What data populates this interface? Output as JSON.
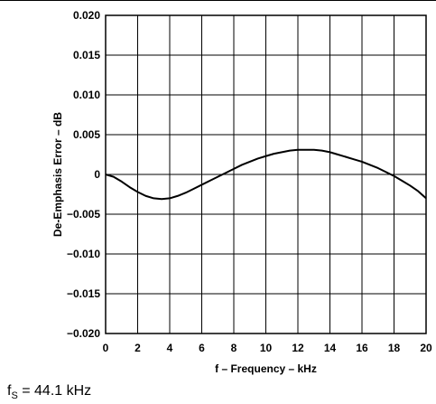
{
  "chart_data": {
    "type": "line",
    "xlabel": "f – Frequency – kHz",
    "ylabel": "De-Emphasis Error – dB",
    "xlim": [
      0,
      20
    ],
    "ylim": [
      -0.02,
      0.02
    ],
    "x_ticks": [
      "0",
      "2",
      "4",
      "6",
      "8",
      "10",
      "12",
      "14",
      "16",
      "18",
      "20"
    ],
    "y_ticks": [
      "0.020",
      "0.015",
      "0.010",
      "0.005",
      "0",
      "−0.005",
      "−0.010",
      "−0.015",
      "−0.020"
    ],
    "grid": true,
    "series": [
      {
        "color": "#000000",
        "x": [
          0,
          0.5,
          1,
          1.5,
          2,
          2.5,
          3,
          3.5,
          4,
          4.5,
          5,
          5.5,
          6,
          6.5,
          7,
          7.5,
          8,
          8.5,
          9,
          9.5,
          10,
          10.5,
          11,
          11.5,
          12,
          12.5,
          13,
          13.5,
          14,
          14.5,
          15,
          15.5,
          16,
          16.5,
          17,
          17.5,
          18,
          18.5,
          19,
          19.5,
          20
        ],
        "y": [
          0.0,
          -0.0003,
          -0.0009,
          -0.0016,
          -0.0022,
          -0.0027,
          -0.003,
          -0.0031,
          -0.003,
          -0.0027,
          -0.0023,
          -0.0018,
          -0.0013,
          -0.0008,
          -0.0003,
          0.0002,
          0.0007,
          0.0012,
          0.0016,
          0.002,
          0.0023,
          0.0026,
          0.0028,
          0.003,
          0.0031,
          0.0031,
          0.0031,
          0.003,
          0.0028,
          0.0025,
          0.0022,
          0.0019,
          0.0016,
          0.0012,
          0.0008,
          0.0003,
          -0.0002,
          -0.0008,
          -0.0014,
          -0.0021,
          -0.003
        ]
      }
    ]
  },
  "note": {
    "prefix": "f",
    "subscript": "S",
    "text": " = 44.1 kHz"
  }
}
